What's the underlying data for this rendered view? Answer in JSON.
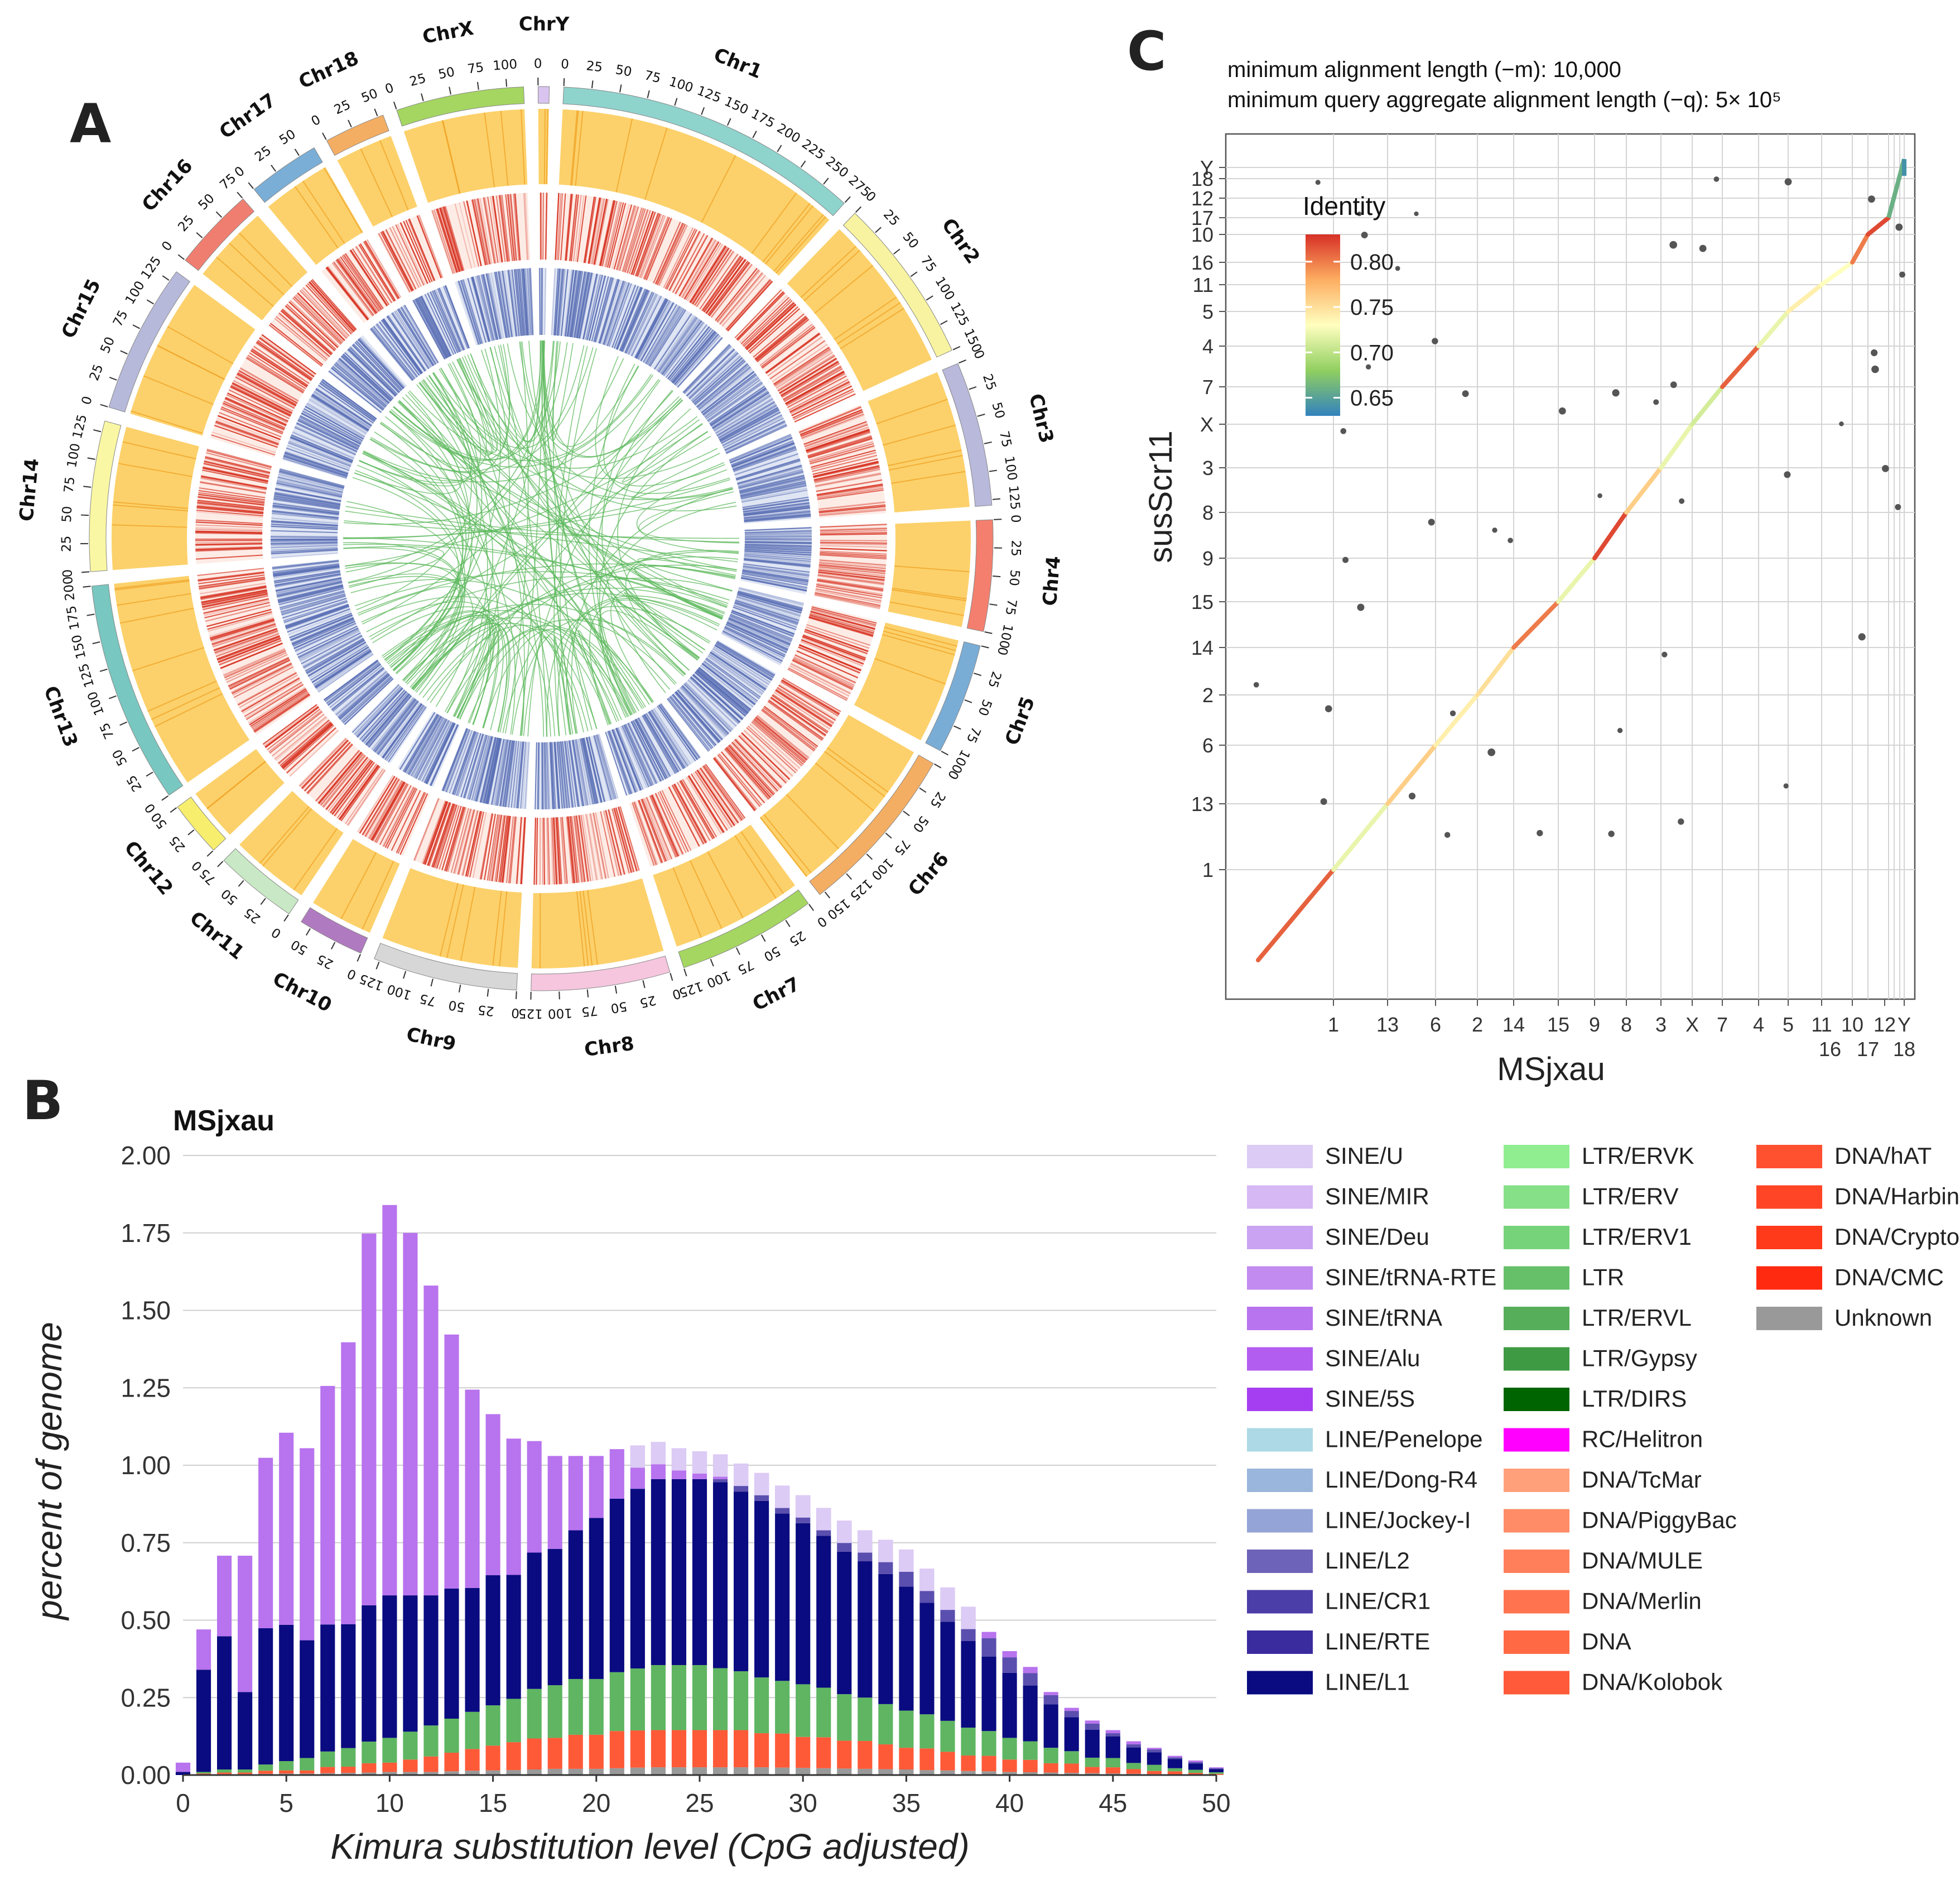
{
  "panels": {
    "a": {
      "letter": "A"
    },
    "b": {
      "letter": "B"
    },
    "c": {
      "letter": "C"
    }
  },
  "circos": {
    "chromosomes": [
      {
        "name": "Chr1",
        "length": 275,
        "color": "#8fd3cd",
        "ticks": [
          0,
          25,
          50,
          75,
          100,
          125,
          150,
          175,
          200,
          225,
          250,
          275
        ]
      },
      {
        "name": "Chr2",
        "length": 150,
        "color": "#f7f3a0",
        "ticks": [
          0,
          25,
          50,
          75,
          100,
          125,
          150
        ]
      },
      {
        "name": "Chr3",
        "length": 130,
        "color": "#b9b9dc",
        "ticks": [
          0,
          25,
          50,
          75,
          100,
          125
        ]
      },
      {
        "name": "Chr4",
        "length": 100,
        "color": "#f47f6e",
        "ticks": [
          0,
          25,
          50,
          75,
          100
        ]
      },
      {
        "name": "Chr5",
        "length": 100,
        "color": "#79add6",
        "ticks": [
          0,
          25,
          50,
          75,
          100
        ]
      },
      {
        "name": "Chr6",
        "length": 155,
        "color": "#f4ae63",
        "ticks": [
          0,
          25,
          50,
          75,
          100,
          125,
          150
        ]
      },
      {
        "name": "Chr7",
        "length": 125,
        "color": "#a5d661",
        "ticks": [
          0,
          25,
          50,
          75,
          100,
          125
        ]
      },
      {
        "name": "Chr8",
        "length": 125,
        "color": "#f5c6de",
        "ticks": [
          0,
          25,
          50,
          75,
          100,
          125
        ]
      },
      {
        "name": "Chr9",
        "length": 130,
        "color": "#d7d7d7",
        "ticks": [
          0,
          25,
          50,
          75,
          100,
          125
        ]
      },
      {
        "name": "Chr10",
        "length": 60,
        "color": "#b07ac0",
        "ticks": [
          0,
          25,
          50
        ]
      },
      {
        "name": "Chr11",
        "length": 75,
        "color": "#c9e8c5",
        "ticks": [
          0,
          25,
          50,
          75
        ]
      },
      {
        "name": "Chr12",
        "length": 50,
        "color": "#f7ee6e",
        "ticks": [
          0,
          25,
          50
        ]
      },
      {
        "name": "Chr13",
        "length": 200,
        "color": "#78c7c0",
        "ticks": [
          0,
          25,
          50,
          75,
          100,
          125,
          150,
          175,
          200
        ]
      },
      {
        "name": "Chr14",
        "length": 135,
        "color": "#f9f7a3",
        "ticks": [
          0,
          25,
          50,
          75,
          100,
          125
        ]
      },
      {
        "name": "Chr15",
        "length": 135,
        "color": "#b7b9db",
        "ticks": [
          0,
          25,
          50,
          75,
          100,
          125
        ]
      },
      {
        "name": "Chr16",
        "length": 75,
        "color": "#f07e70",
        "ticks": [
          0,
          25,
          50,
          75
        ]
      },
      {
        "name": "Chr17",
        "length": 65,
        "color": "#7aaed6",
        "ticks": [
          0,
          25,
          50
        ]
      },
      {
        "name": "Chr18",
        "length": 55,
        "color": "#f4ae63",
        "ticks": [
          0,
          25,
          50
        ]
      },
      {
        "name": "ChrX",
        "length": 115,
        "color": "#a5d661",
        "ticks": [
          0,
          25,
          50,
          75,
          100
        ]
      },
      {
        "name": "ChrY",
        "length": 10,
        "color": "#d8c4ef",
        "ticks": [
          0
        ]
      }
    ],
    "track_colors": {
      "gene_density": "#fcd16b",
      "heat_red": "#d7301f",
      "heat_blue": "#5a6fb5",
      "links": "#5cb85c"
    }
  },
  "chart_data": [
    {
      "type": "bar",
      "stacked": true,
      "title": "MSjxau",
      "xlabel": "Kimura substitution level (CpG adjusted)",
      "ylabel": "percent of genome",
      "xlim": [
        0,
        50
      ],
      "ylim": [
        0,
        2.0
      ],
      "xticks": [
        0,
        5,
        10,
        15,
        20,
        25,
        30,
        35,
        40,
        45,
        50
      ],
      "yticks": [
        "0.00",
        "0.25",
        "0.50",
        "0.75",
        "1.00",
        "1.25",
        "1.50",
        "1.75",
        "2.00"
      ],
      "x": [
        0,
        1,
        2,
        3,
        4,
        5,
        6,
        7,
        8,
        9,
        10,
        11,
        12,
        13,
        14,
        15,
        16,
        17,
        18,
        19,
        20,
        21,
        22,
        23,
        24,
        25,
        26,
        27,
        28,
        29,
        30,
        31,
        32,
        33,
        34,
        35,
        36,
        37,
        38,
        39,
        40,
        41,
        42,
        43,
        44,
        45,
        46,
        47,
        48,
        49,
        50
      ],
      "categories": [
        "SINE/U",
        "SINE/MIR",
        "SINE/Deu",
        "SINE/tRNA-RTE",
        "SINE/tRNA",
        "SINE/Alu",
        "SINE/5S",
        "LINE/Penelope",
        "LINE/Dong-R4",
        "LINE/Jockey-I",
        "LINE/L2",
        "LINE/CR1",
        "LINE/RTE",
        "LINE/L1",
        "LTR/ERVK",
        "LTR/ERV",
        "LTR/ERV1",
        "LTR",
        "LTR/ERVL",
        "LTR/Gypsy",
        "LTR/DIRS",
        "RC/Helitron",
        "DNA/TcMar",
        "DNA/PiggyBac",
        "DNA/MULE",
        "DNA/Merlin",
        "DNA",
        "DNA/Kolobok",
        "DNA/hAT",
        "DNA/Harbinger",
        "DNA/Crypton",
        "DNA/CMC",
        "Unknown"
      ],
      "colors": [
        "#dccbf5",
        "#d6b8f5",
        "#caa3f2",
        "#c18bef",
        "#b873ee",
        "#b35df0",
        "#a53ef0",
        "#add8e6",
        "#9ab6dc",
        "#94a4d6",
        "#6d63b8",
        "#4b3ea8",
        "#3a2c9e",
        "#0a0b80",
        "#90ee90",
        "#86e088",
        "#76d37a",
        "#66c06a",
        "#57ae5a",
        "#3f9a44",
        "#006400",
        "#ff00ff",
        "#ffa07a",
        "#ff8c66",
        "#ff7f5a",
        "#ff744f",
        "#ff6a45",
        "#ff5a3a",
        "#ff5030",
        "#ff4525",
        "#ff3a1a",
        "#ff2a10",
        "#999999"
      ],
      "series": [
        {
          "name": "SINE",
          "values": [
            0.03,
            0.13,
            0.26,
            0.44,
            0.55,
            0.62,
            0.62,
            0.77,
            0.91,
            1.2,
            1.26,
            1.17,
            1.0,
            0.82,
            0.64,
            0.52,
            0.44,
            0.36,
            0.3,
            0.24,
            0.2,
            0.16,
            0.14,
            0.12,
            0.1,
            0.09,
            0.08,
            0.07,
            0.07,
            0.06,
            0.06,
            0.05,
            0.05,
            0.04,
            0.04,
            0.04,
            0.03,
            0.03,
            0.03,
            0.02,
            0.02,
            0.02,
            0.01,
            0.01,
            0.01,
            0.01,
            0.01,
            0.005,
            0.005,
            0.005,
            0.003
          ]
        },
        {
          "name": "LINE/L2",
          "values": [
            0,
            0,
            0,
            0,
            0,
            0,
            0,
            0,
            0,
            0,
            0,
            0,
            0,
            0,
            0,
            0,
            0,
            0,
            0,
            0,
            0,
            0,
            0,
            0,
            0,
            0,
            0.01,
            0.02,
            0.02,
            0.03,
            0.03,
            0.04,
            0.05,
            0.06,
            0.07,
            0.08,
            0.08,
            0.08,
            0.08,
            0.06,
            0.05,
            0.04,
            0.03,
            0.02,
            0.02,
            0.01,
            0.01,
            0.01,
            0.005,
            0.005,
            0.003
          ]
        },
        {
          "name": "LINE/L1",
          "values": [
            0.01,
            0.33,
            0.43,
            0.25,
            0.44,
            0.44,
            0.38,
            0.41,
            0.4,
            0.44,
            0.46,
            0.44,
            0.42,
            0.42,
            0.4,
            0.42,
            0.4,
            0.44,
            0.44,
            0.48,
            0.52,
            0.56,
            0.58,
            0.6,
            0.6,
            0.6,
            0.6,
            0.58,
            0.57,
            0.54,
            0.52,
            0.49,
            0.46,
            0.44,
            0.42,
            0.4,
            0.36,
            0.32,
            0.28,
            0.24,
            0.21,
            0.18,
            0.14,
            0.11,
            0.09,
            0.07,
            0.05,
            0.04,
            0.03,
            0.02,
            0.01
          ]
        },
        {
          "name": "LTR",
          "values": [
            0,
            0.005,
            0.01,
            0.01,
            0.02,
            0.03,
            0.04,
            0.05,
            0.06,
            0.07,
            0.08,
            0.09,
            0.1,
            0.11,
            0.12,
            0.13,
            0.14,
            0.16,
            0.17,
            0.18,
            0.18,
            0.19,
            0.2,
            0.21,
            0.21,
            0.21,
            0.2,
            0.19,
            0.18,
            0.17,
            0.17,
            0.16,
            0.15,
            0.14,
            0.13,
            0.12,
            0.11,
            0.1,
            0.09,
            0.08,
            0.07,
            0.06,
            0.05,
            0.04,
            0.03,
            0.03,
            0.02,
            0.02,
            0.01,
            0.01,
            0.005
          ]
        },
        {
          "name": "DNA",
          "values": [
            0,
            0.003,
            0.005,
            0.005,
            0.01,
            0.01,
            0.01,
            0.02,
            0.02,
            0.03,
            0.03,
            0.04,
            0.05,
            0.06,
            0.07,
            0.08,
            0.09,
            0.1,
            0.1,
            0.11,
            0.11,
            0.12,
            0.12,
            0.12,
            0.12,
            0.12,
            0.12,
            0.12,
            0.11,
            0.11,
            0.1,
            0.1,
            0.09,
            0.09,
            0.08,
            0.07,
            0.07,
            0.06,
            0.05,
            0.05,
            0.04,
            0.04,
            0.03,
            0.03,
            0.02,
            0.02,
            0.015,
            0.01,
            0.01,
            0.005,
            0.003
          ]
        },
        {
          "name": "Unknown",
          "values": [
            0,
            0.002,
            0.003,
            0.003,
            0.004,
            0.005,
            0.005,
            0.006,
            0.007,
            0.008,
            0.01,
            0.01,
            0.01,
            0.012,
            0.014,
            0.015,
            0.016,
            0.018,
            0.02,
            0.02,
            0.02,
            0.022,
            0.024,
            0.025,
            0.025,
            0.025,
            0.025,
            0.025,
            0.025,
            0.024,
            0.023,
            0.022,
            0.021,
            0.02,
            0.019,
            0.018,
            0.016,
            0.015,
            0.013,
            0.012,
            0.01,
            0.009,
            0.008,
            0.007,
            0.006,
            0.005,
            0.004,
            0.003,
            0.002,
            0.002,
            0.001
          ]
        }
      ]
    },
    {
      "type": "scatter",
      "title": "minimum alignment length (−m): 10,000",
      "subtitle": "minimum query aggregate alignment length (−q): 5× 10⁵",
      "xlabel": "MSjxau",
      "ylabel": "susScr11",
      "legend_title": "Identity",
      "legend_ticks": [
        "0.80",
        "0.75",
        "0.70",
        "0.65"
      ],
      "legend_range": [
        0.63,
        0.83
      ],
      "x_order": [
        "",
        "1",
        "13",
        "6",
        "2",
        "14",
        "15",
        "9",
        "8",
        "3",
        "X",
        "7",
        "4",
        "5",
        "11",
        "10",
        "16",
        "12",
        "17",
        "Y",
        "18"
      ],
      "x_tick_labels_row1": [
        "1",
        "13",
        "6",
        "2",
        "14",
        "15",
        "9",
        "8",
        "3",
        "X",
        "7",
        "4",
        "5",
        "11",
        "10",
        "12",
        "Y"
      ],
      "x_tick_labels_row2": [
        "16",
        "17",
        "18"
      ],
      "y_tick_labels": [
        "1",
        "13",
        "6",
        "2",
        "14",
        "15",
        "9",
        "8",
        "3",
        "X",
        "7",
        "4",
        "5",
        "11",
        "16",
        "10",
        "17",
        "12",
        "18",
        "Y"
      ],
      "diagonal_segments": [
        {
          "chr": "pre",
          "identity": 0.81
        },
        {
          "chr": "1",
          "identity": 0.72
        },
        {
          "chr": "13",
          "identity": 0.76
        },
        {
          "chr": "6",
          "identity": 0.74
        },
        {
          "chr": "2",
          "identity": 0.75
        },
        {
          "chr": "14",
          "identity": 0.8
        },
        {
          "chr": "15",
          "identity": 0.72
        },
        {
          "chr": "9",
          "identity": 0.82
        },
        {
          "chr": "8",
          "identity": 0.76
        },
        {
          "chr": "3",
          "identity": 0.72
        },
        {
          "chr": "X",
          "identity": 0.71
        },
        {
          "chr": "7",
          "identity": 0.81
        },
        {
          "chr": "4",
          "identity": 0.72
        },
        {
          "chr": "5",
          "identity": 0.74
        },
        {
          "chr": "11",
          "identity": 0.73
        },
        {
          "chr": "10",
          "identity": 0.8
        },
        {
          "chr": "12",
          "identity": 0.82
        },
        {
          "chr": "17",
          "identity": 0.79
        }
      ]
    }
  ]
}
